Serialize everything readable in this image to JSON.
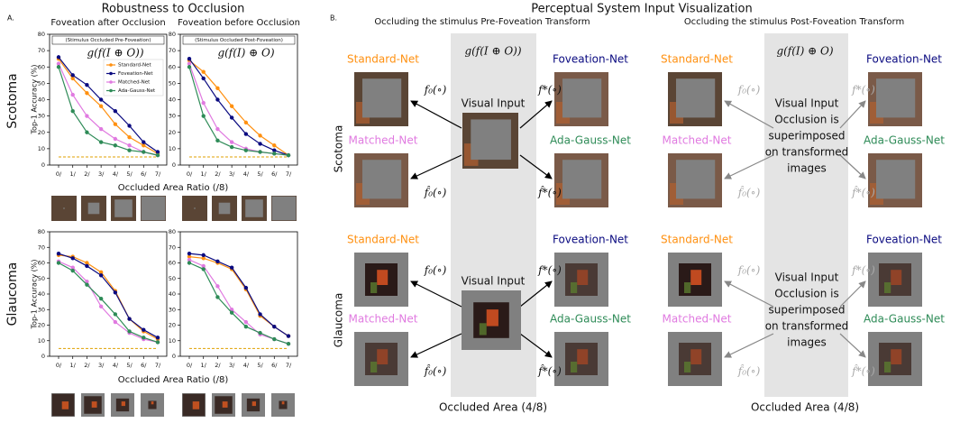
{
  "panel_a": {
    "label": "A.",
    "title": "Robustness to Occlusion",
    "column_titles": [
      "Foveation after Occlusion",
      "Foveation before Occlusion"
    ],
    "row_labels": [
      "Scotoma",
      "Glaucoma"
    ],
    "ylabel": "Top-1 Accuracy (%)",
    "xlabel": "Occluded Area Ratio (/8)"
  },
  "chart_data": [
    {
      "type": "line",
      "annotation": "(Stimulus Occluded Pre-Foveation)",
      "formula": "g(f(I ⊕ O))",
      "categories": [
        "0/",
        "1/",
        "2/",
        "3/",
        "4/",
        "5/",
        "6/",
        "7/"
      ],
      "ylim": [
        0,
        80
      ],
      "yticks": [
        0,
        10,
        20,
        30,
        40,
        50,
        60,
        70,
        80
      ],
      "legend": "upper right",
      "reference_line": 5,
      "reference_color": "#e0a000",
      "series": [
        {
          "name": "Standard-Net",
          "color": "#ff9010",
          "values": [
            65,
            53,
            44,
            36,
            25,
            17,
            12,
            7
          ]
        },
        {
          "name": "Foveation-Net",
          "color": "#0a0a80",
          "values": [
            66,
            55,
            49,
            40,
            33,
            24,
            14,
            8
          ]
        },
        {
          "name": "Matched-Net",
          "color": "#e07ae0",
          "values": [
            62,
            43,
            30,
            22,
            16,
            12,
            8,
            6
          ]
        },
        {
          "name": "Ada-Gauss-Net",
          "color": "#2e8b57",
          "values": [
            60,
            33,
            20,
            14,
            12,
            9,
            8,
            6
          ]
        }
      ]
    },
    {
      "type": "line",
      "annotation": "(Stimulus Occluded Post-Foveation)",
      "formula": "g(f(I) ⊕ O)",
      "categories": [
        "0/",
        "1/",
        "2/",
        "3/",
        "4/",
        "5/",
        "6/",
        "7/"
      ],
      "ylim": [
        0,
        80
      ],
      "yticks": [
        0,
        10,
        20,
        30,
        40,
        50,
        60,
        70,
        80
      ],
      "reference_line": 5,
      "reference_color": "#e0a000",
      "series": [
        {
          "name": "Standard-Net",
          "color": "#ff9010",
          "values": [
            64,
            57,
            47,
            36,
            26,
            18,
            12,
            6
          ]
        },
        {
          "name": "Foveation-Net",
          "color": "#0a0a80",
          "values": [
            65,
            53,
            40,
            29,
            19,
            13,
            9,
            6
          ]
        },
        {
          "name": "Matched-Net",
          "color": "#e07ae0",
          "values": [
            62,
            38,
            22,
            14,
            10,
            8,
            7,
            6
          ]
        },
        {
          "name": "Ada-Gauss-Net",
          "color": "#2e8b57",
          "values": [
            60,
            30,
            15,
            11,
            9,
            8,
            7,
            6
          ]
        }
      ]
    },
    {
      "type": "line",
      "categories": [
        "0/",
        "1/",
        "2/",
        "3/",
        "4/",
        "5/",
        "6/",
        "7/"
      ],
      "ylim": [
        0,
        80
      ],
      "yticks": [
        0,
        10,
        20,
        30,
        40,
        50,
        60,
        70,
        80
      ],
      "reference_line": 5,
      "reference_color": "#e0a000",
      "series": [
        {
          "name": "Standard-Net",
          "color": "#ff9010",
          "values": [
            65,
            64,
            60,
            54,
            42,
            24,
            16,
            11
          ]
        },
        {
          "name": "Foveation-Net",
          "color": "#0a0a80",
          "values": [
            66,
            63,
            58,
            52,
            41,
            24,
            17,
            12
          ]
        },
        {
          "name": "Matched-Net",
          "color": "#e07ae0",
          "values": [
            61,
            57,
            48,
            32,
            22,
            15,
            11,
            9
          ]
        },
        {
          "name": "Ada-Gauss-Net",
          "color": "#2e8b57",
          "values": [
            60,
            55,
            46,
            37,
            27,
            16,
            12,
            9
          ]
        }
      ]
    },
    {
      "type": "line",
      "categories": [
        "0/",
        "1/",
        "2/",
        "3/",
        "4/",
        "5/",
        "6/",
        "7/"
      ],
      "ylim": [
        0,
        80
      ],
      "yticks": [
        0,
        10,
        20,
        30,
        40,
        50,
        60,
        70,
        80
      ],
      "reference_line": 5,
      "reference_color": "#e0a000",
      "series": [
        {
          "name": "Standard-Net",
          "color": "#ff9010",
          "values": [
            64,
            63,
            60,
            56,
            43,
            26,
            19,
            13
          ]
        },
        {
          "name": "Foveation-Net",
          "color": "#0a0a80",
          "values": [
            66,
            65,
            61,
            57,
            44,
            27,
            19,
            13
          ]
        },
        {
          "name": "Matched-Net",
          "color": "#e07ae0",
          "values": [
            62,
            58,
            45,
            30,
            22,
            14,
            11,
            8
          ]
        },
        {
          "name": "Ada-Gauss-Net",
          "color": "#2e8b57",
          "values": [
            60,
            56,
            38,
            28,
            19,
            15,
            11,
            8
          ]
        }
      ]
    }
  ],
  "panel_b": {
    "label": "B.",
    "title": "Perceptual System Input Visualization",
    "row_labels": [
      "Scotoma",
      "Glaucoma"
    ],
    "nets": [
      "Standard-Net",
      "Foveation-Net",
      "Matched-Net",
      "Ada-Gauss-Net"
    ],
    "transforms": [
      "f₀(∘)",
      "f*(∘)",
      "f̂₀(∘)",
      "f̂*(∘)"
    ],
    "sections": [
      {
        "title": "Occluding the stimulus Pre-Foveation Transform",
        "formula": "g(f(I ⊕ O))",
        "center_text": [
          "Visual Input"
        ],
        "footer": "Occluded Area (4/8)"
      },
      {
        "title": "Occluding the stimulus Post-Foveation Transform",
        "formula": "g(f(I) ⊕ O)",
        "center_text": [
          "Visual Input",
          "Occlusion is",
          "superimposed",
          "on transformed",
          "images"
        ],
        "footer": "Occluded Area (4/8)"
      }
    ]
  }
}
